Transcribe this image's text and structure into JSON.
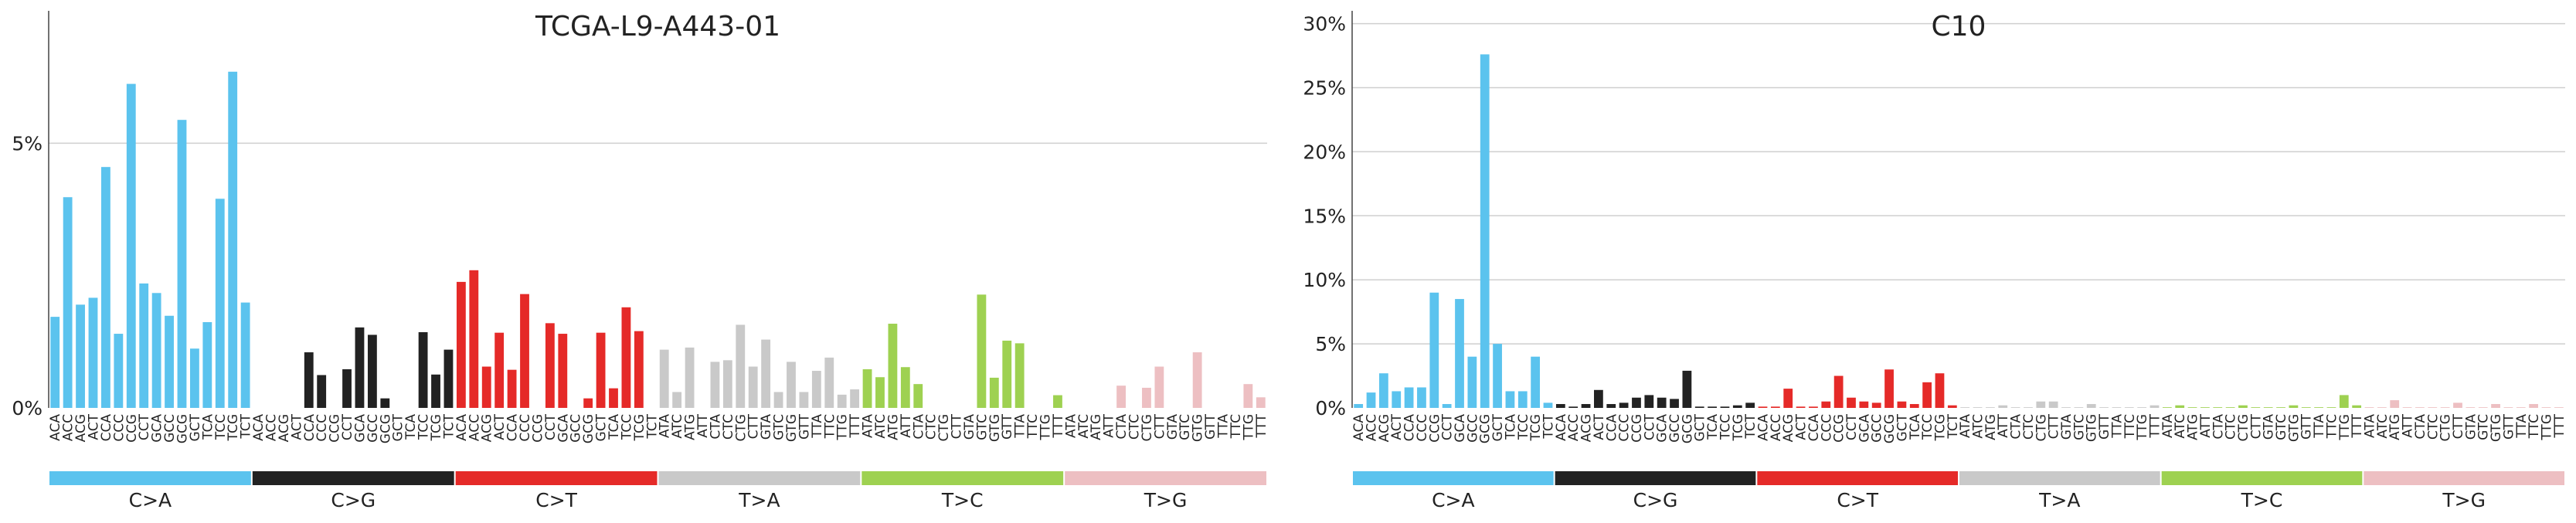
{
  "colors": {
    "C>A": "#5BC3EE",
    "C>G": "#222222",
    "C>T": "#E52A28",
    "T>A": "#C9C9C9",
    "T>C": "#9ED151",
    "T>G": "#EDBFC2"
  },
  "mutation_types": [
    "C>A",
    "C>G",
    "C>T",
    "T>A",
    "T>C",
    "T>G"
  ],
  "chart_data": [
    {
      "type": "bar",
      "title": "TCGA-L9-A443-01",
      "xlabel": "",
      "ylabel": "",
      "ylim": [
        0,
        7.5
      ],
      "yticks": [
        0,
        5
      ],
      "ytick_labels": [
        "0%",
        "5%"
      ],
      "grid": true,
      "groups": [
        {
          "name": "C>A",
          "contexts": [
            "ACA",
            "ACC",
            "ACG",
            "ACT",
            "CCA",
            "CCC",
            "CCG",
            "CCT",
            "GCA",
            "GCC",
            "GCG",
            "GCT",
            "TCA",
            "TCC",
            "TCG",
            "TCT"
          ],
          "values": [
            1.72,
            3.98,
            1.95,
            2.08,
            4.55,
            1.4,
            6.12,
            2.35,
            2.17,
            1.74,
            5.44,
            1.12,
            1.62,
            3.95,
            6.35,
            1.99
          ]
        },
        {
          "name": "C>G",
          "contexts": [
            "ACA",
            "ACC",
            "ACG",
            "ACT",
            "CCA",
            "CCC",
            "CCG",
            "CCT",
            "GCA",
            "GCC",
            "GCG",
            "GCT",
            "TCA",
            "TCC",
            "TCG",
            "TCT"
          ],
          "values": [
            0,
            0,
            0,
            0,
            1.05,
            0.62,
            0,
            0.73,
            1.52,
            1.38,
            0.18,
            0,
            0,
            1.43,
            0.63,
            1.1
          ]
        },
        {
          "name": "C>T",
          "contexts": [
            "ACA",
            "ACC",
            "ACG",
            "ACT",
            "CCA",
            "CCC",
            "CCG",
            "CCT",
            "GCA",
            "GCC",
            "GCG",
            "GCT",
            "TCA",
            "TCC",
            "TCG",
            "TCT"
          ],
          "values": [
            2.38,
            2.6,
            0.78,
            1.42,
            0.72,
            2.15,
            0,
            1.6,
            1.4,
            0,
            0.18,
            1.42,
            0.37,
            1.9,
            1.45,
            0
          ]
        },
        {
          "name": "T>A",
          "contexts": [
            "ATA",
            "ATC",
            "ATG",
            "ATT",
            "CTA",
            "CTC",
            "CTG",
            "CTT",
            "GTA",
            "GTC",
            "GTG",
            "GTT",
            "TTA",
            "TTC",
            "TTG",
            "TTT"
          ],
          "values": [
            1.1,
            0.3,
            1.14,
            0,
            0.87,
            0.9,
            1.57,
            0.78,
            1.29,
            0.3,
            0.87,
            0.3,
            0.7,
            0.95,
            0.25,
            0.35
          ]
        },
        {
          "name": "T>C",
          "contexts": [
            "ATA",
            "ATC",
            "ATG",
            "ATT",
            "CTA",
            "CTC",
            "CTG",
            "CTT",
            "GTA",
            "GTC",
            "GTG",
            "GTT",
            "TTA",
            "TTC",
            "TTG",
            "TTT"
          ],
          "values": [
            0.73,
            0.58,
            1.59,
            0.77,
            0.45,
            0,
            0,
            0,
            0,
            2.14,
            0.57,
            1.27,
            1.22,
            0,
            0,
            0.24
          ]
        },
        {
          "name": "T>G",
          "contexts": [
            "ATA",
            "ATC",
            "ATG",
            "ATT",
            "CTA",
            "CTC",
            "CTG",
            "CTT",
            "GTA",
            "GTC",
            "GTG",
            "GTT",
            "TTA",
            "TTC",
            "TTG",
            "TTT"
          ],
          "values": [
            0,
            0,
            0,
            0,
            0.42,
            0,
            0.38,
            0.78,
            0,
            0,
            1.05,
            0,
            0,
            0,
            0.45,
            0.2
          ]
        }
      ]
    },
    {
      "type": "bar",
      "title": "C10",
      "xlabel": "",
      "ylabel": "",
      "ylim": [
        0,
        31
      ],
      "yticks": [
        0,
        5,
        10,
        15,
        20,
        25,
        30
      ],
      "ytick_labels": [
        "0%",
        "5%",
        "10%",
        "15%",
        "20%",
        "25%",
        "30%"
      ],
      "grid": true,
      "groups": [
        {
          "name": "C>A",
          "contexts": [
            "ACA",
            "ACC",
            "ACG",
            "ACT",
            "CCA",
            "CCC",
            "CCG",
            "CCT",
            "GCA",
            "GCC",
            "GCG",
            "GCT",
            "TCA",
            "TCC",
            "TCG",
            "TCT"
          ],
          "values": [
            0.3,
            1.2,
            2.7,
            1.3,
            1.6,
            1.6,
            9.0,
            0.3,
            8.5,
            4.0,
            27.6,
            5.0,
            1.3,
            1.3,
            4.0,
            0.4
          ]
        },
        {
          "name": "C>G",
          "contexts": [
            "ACA",
            "ACC",
            "ACG",
            "ACT",
            "CCA",
            "CCC",
            "CCG",
            "CCT",
            "GCA",
            "GCC",
            "GCG",
            "GCT",
            "TCA",
            "TCC",
            "TCG",
            "TCT"
          ],
          "values": [
            0.3,
            0.1,
            0.3,
            1.4,
            0.3,
            0.4,
            0.8,
            1.0,
            0.8,
            0.7,
            2.9,
            0.1,
            0.1,
            0.1,
            0.2,
            0.4
          ]
        },
        {
          "name": "C>T",
          "contexts": [
            "ACA",
            "ACC",
            "ACG",
            "ACT",
            "CCA",
            "CCC",
            "CCG",
            "CCT",
            "GCA",
            "GCC",
            "GCG",
            "GCT",
            "TCA",
            "TCC",
            "TCG",
            "TCT"
          ],
          "values": [
            0.1,
            0.1,
            1.5,
            0.1,
            0.1,
            0.5,
            2.5,
            0.8,
            0.5,
            0.4,
            3.0,
            0.5,
            0.3,
            2.0,
            2.7,
            0.2
          ]
        },
        {
          "name": "T>A",
          "contexts": [
            "ATA",
            "ATC",
            "ATG",
            "ATT",
            "CTA",
            "CTC",
            "CTG",
            "CTT",
            "GTA",
            "GTC",
            "GTG",
            "GTT",
            "TTA",
            "TTC",
            "TTG",
            "TTT"
          ],
          "values": [
            0.05,
            0.05,
            0.05,
            0.2,
            0.05,
            0.05,
            0.5,
            0.5,
            0.05,
            0.05,
            0.3,
            0.05,
            0.05,
            0.05,
            0.05,
            0.2
          ]
        },
        {
          "name": "T>C",
          "contexts": [
            "ATA",
            "ATC",
            "ATG",
            "ATT",
            "CTA",
            "CTC",
            "CTG",
            "CTT",
            "GTA",
            "GTC",
            "GTG",
            "GTT",
            "TTA",
            "TTC",
            "TTG",
            "TTT"
          ],
          "values": [
            0.05,
            0.2,
            0.05,
            0.05,
            0.05,
            0.05,
            0.2,
            0.05,
            0.05,
            0.05,
            0.2,
            0.05,
            0.05,
            0.05,
            1.0,
            0.2
          ]
        },
        {
          "name": "T>G",
          "contexts": [
            "ATA",
            "ATC",
            "ATG",
            "ATT",
            "CTA",
            "CTC",
            "CTG",
            "CTT",
            "GTA",
            "GTC",
            "GTG",
            "GTT",
            "TTA",
            "TTC",
            "TTG",
            "TTT"
          ],
          "values": [
            0.05,
            0.05,
            0.6,
            0.05,
            0.05,
            0.05,
            0.05,
            0.4,
            0.05,
            0.05,
            0.3,
            0.05,
            0.05,
            0.3,
            0.05,
            0.05
          ]
        }
      ]
    }
  ]
}
